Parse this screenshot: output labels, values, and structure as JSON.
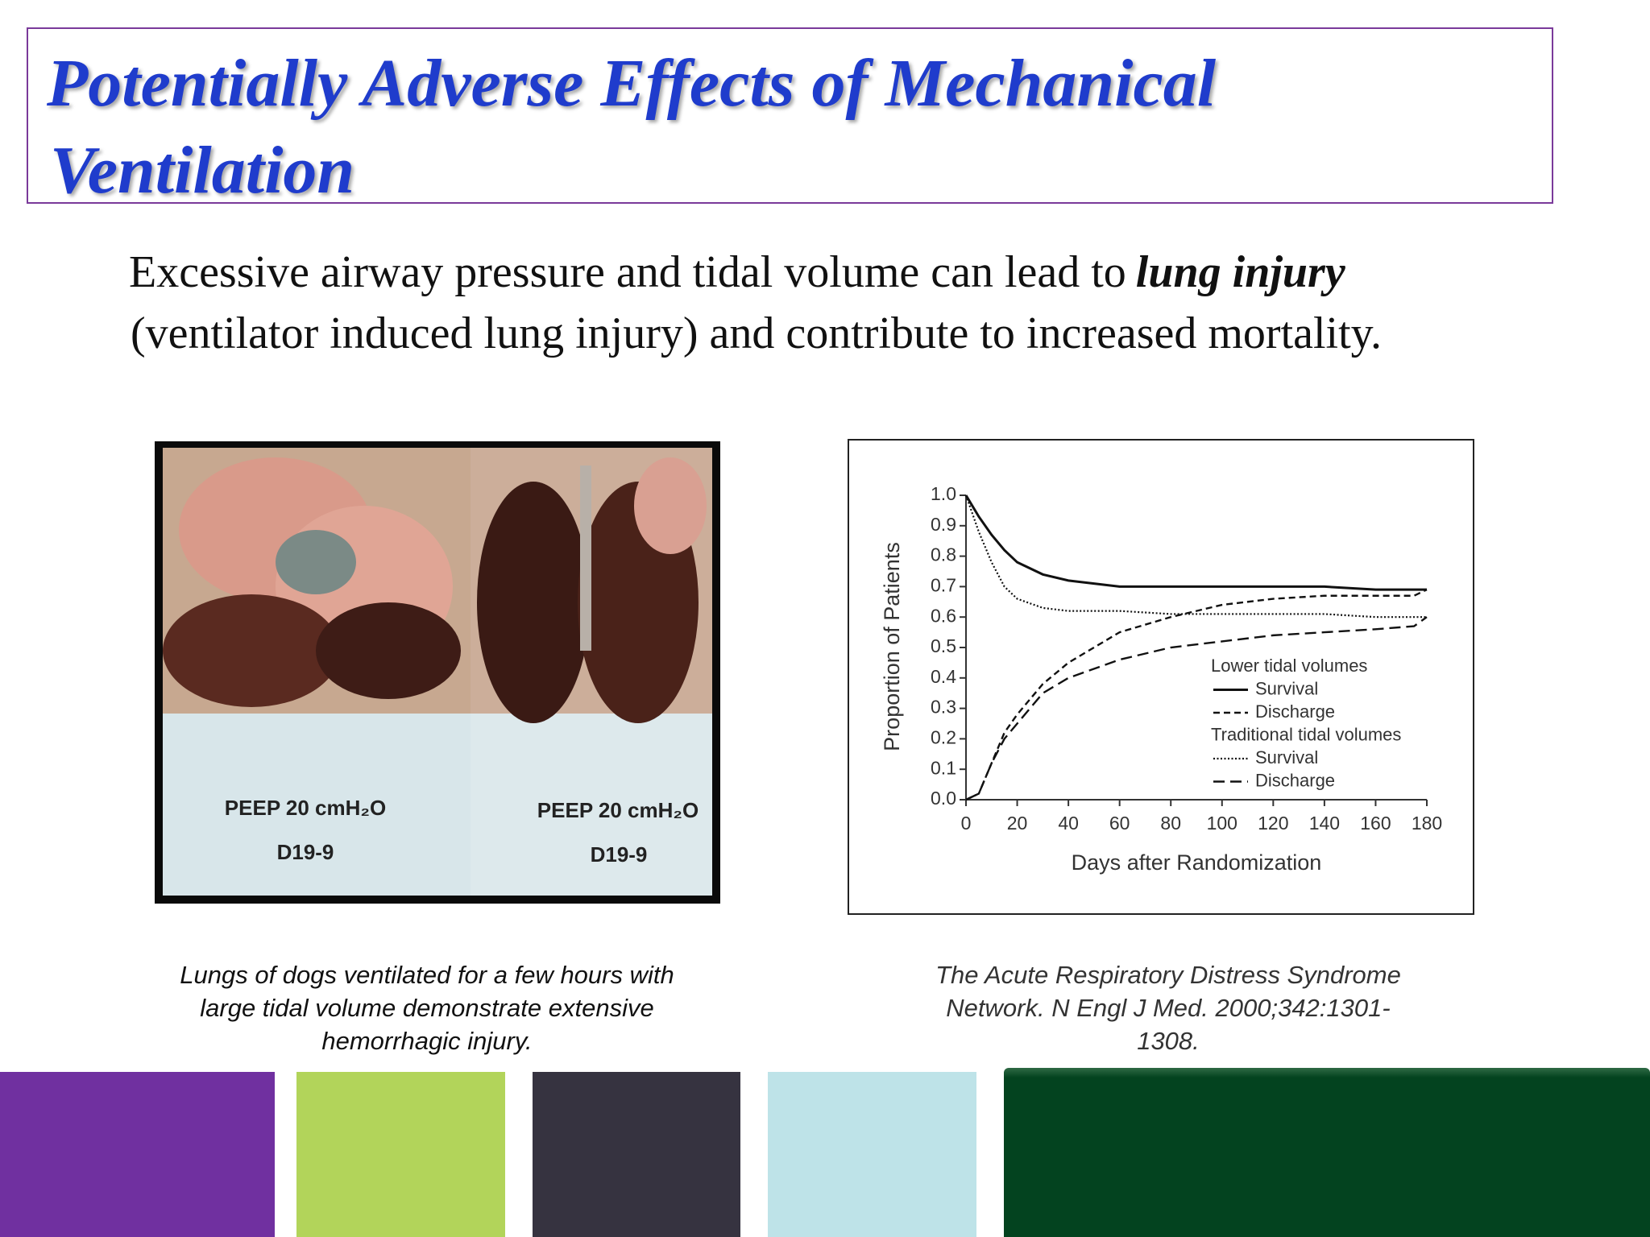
{
  "slide": {
    "title": [
      "Potentially Adverse Effects of Mechanical",
      "Ventilation"
    ],
    "body": {
      "line1": "Excessive airway pressure and tidal volume can lead to",
      "emphasis": "lung injury",
      "line2": "(ventilator induced lung injury) and contribute to increased mortality."
    },
    "photo": {
      "labels": [
        {
          "peep": "PEEP  20 cmH₂O",
          "id": "D19-9"
        },
        {
          "peep": "PEEP  20 cmH₂O",
          "id": "D19-9"
        }
      ]
    },
    "captions": [
      [
        "Lungs of dogs ventilated for a few hours with",
        "large tidal volume demonstrate extensive",
        "hemorrhagic injury."
      ],
      [
        "The Acute Respiratory Distress Syndrome",
        "Network. N Engl J Med. 2000;342:1301-",
        "1308."
      ]
    ]
  },
  "chart_data": {
    "type": "line",
    "x_label": "Days after Randomization",
    "y_label": "Proportion of Patients",
    "x": [
      0,
      5,
      10,
      15,
      20,
      30,
      40,
      60,
      80,
      100,
      120,
      140,
      160,
      175,
      180
    ],
    "series": [
      {
        "group": "Lower tidal volumes",
        "name": "Survival",
        "color": "#111111",
        "dash": "solid",
        "values": [
          1.0,
          0.93,
          0.87,
          0.82,
          0.78,
          0.74,
          0.72,
          0.7,
          0.7,
          0.7,
          0.7,
          0.7,
          0.69,
          0.69,
          0.69
        ]
      },
      {
        "group": "Lower tidal volumes",
        "name": "Discharge",
        "color": "#111111",
        "dash": "short-dash",
        "values": [
          0,
          0.02,
          0.12,
          0.22,
          0.28,
          0.38,
          0.45,
          0.55,
          0.6,
          0.64,
          0.66,
          0.67,
          0.67,
          0.67,
          0.69
        ]
      },
      {
        "group": "Traditional tidal volumes",
        "name": "Survival",
        "color": "#111111",
        "dash": "dotted",
        "values": [
          1.0,
          0.88,
          0.78,
          0.7,
          0.66,
          0.63,
          0.62,
          0.62,
          0.61,
          0.61,
          0.61,
          0.61,
          0.6,
          0.6,
          0.6
        ]
      },
      {
        "group": "Traditional tidal volumes",
        "name": "Discharge",
        "color": "#111111",
        "dash": "long-dash",
        "values": [
          0,
          0.02,
          0.12,
          0.2,
          0.25,
          0.35,
          0.4,
          0.46,
          0.5,
          0.52,
          0.54,
          0.55,
          0.56,
          0.57,
          0.6
        ]
      }
    ],
    "xlim": [
      0,
      180
    ],
    "xticks": [
      0,
      20,
      40,
      60,
      80,
      100,
      120,
      140,
      160,
      180
    ],
    "ylim": [
      0,
      1
    ],
    "yticks": [
      {
        "value": 0,
        "label": "0.0"
      },
      0.1,
      0.2,
      0.3,
      0.4,
      0.5,
      0.6,
      0.7,
      0.8,
      0.9,
      {
        "value": 1,
        "label": "1.0"
      }
    ],
    "grid": false
  }
}
